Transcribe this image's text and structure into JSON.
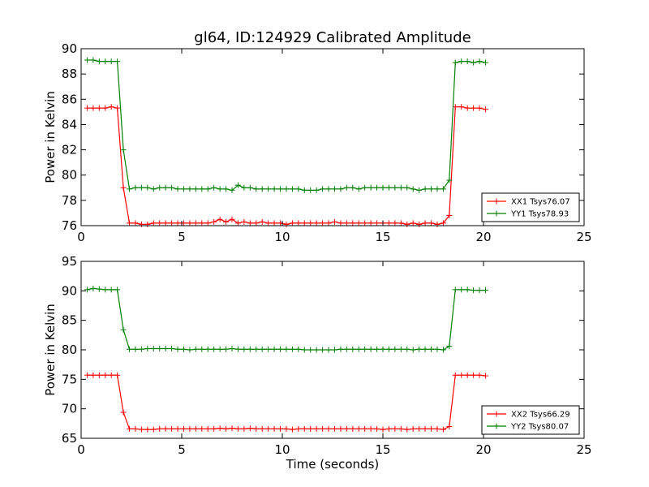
{
  "colors": {
    "xx": "#ff0000",
    "yy": "#008000",
    "axis": "#000000"
  },
  "chart_data": [
    {
      "type": "line",
      "title": "gl64, ID:124929 Calibrated Amplitude",
      "xlabel": "",
      "ylabel": "Power in Kelvin",
      "xlim": [
        0,
        25
      ],
      "ylim": [
        76,
        90
      ],
      "xticks": [
        0,
        5,
        10,
        15,
        20,
        25
      ],
      "yticks": [
        76,
        78,
        80,
        82,
        84,
        86,
        88,
        90
      ],
      "legend_position": "lower-right",
      "x": [
        0.3,
        0.6,
        0.9,
        1.2,
        1.5,
        1.8,
        2.1,
        2.4,
        2.7,
        3.0,
        3.3,
        3.6,
        3.9,
        4.2,
        4.5,
        4.8,
        5.1,
        5.4,
        5.7,
        6.0,
        6.3,
        6.6,
        6.9,
        7.2,
        7.5,
        7.8,
        8.1,
        8.4,
        8.7,
        9.0,
        9.3,
        9.6,
        9.9,
        10.2,
        10.5,
        10.8,
        11.1,
        11.4,
        11.7,
        12.0,
        12.3,
        12.6,
        12.9,
        13.2,
        13.5,
        13.8,
        14.1,
        14.4,
        14.7,
        15.0,
        15.3,
        15.6,
        15.9,
        16.2,
        16.5,
        16.8,
        17.1,
        17.4,
        17.7,
        18.0,
        18.3,
        18.6,
        18.9,
        19.2,
        19.5,
        19.8,
        20.1
      ],
      "series": [
        {
          "name": "XX1 Tsys76.07",
          "color": "#ff0000",
          "values": [
            85.3,
            85.3,
            85.3,
            85.3,
            85.4,
            85.3,
            79.0,
            76.2,
            76.2,
            76.1,
            76.1,
            76.2,
            76.2,
            76.2,
            76.2,
            76.2,
            76.2,
            76.2,
            76.2,
            76.2,
            76.2,
            76.3,
            76.5,
            76.3,
            76.5,
            76.2,
            76.3,
            76.2,
            76.2,
            76.3,
            76.2,
            76.2,
            76.2,
            76.1,
            76.2,
            76.2,
            76.2,
            76.2,
            76.2,
            76.2,
            76.2,
            76.3,
            76.2,
            76.2,
            76.2,
            76.2,
            76.2,
            76.2,
            76.2,
            76.2,
            76.2,
            76.2,
            76.2,
            76.1,
            76.2,
            76.1,
            76.2,
            76.2,
            76.1,
            76.2,
            76.8,
            85.4,
            85.4,
            85.3,
            85.3,
            85.3,
            85.2
          ]
        },
        {
          "name": "YY1 Tsys78.93",
          "color": "#008000",
          "values": [
            89.1,
            89.1,
            89.0,
            89.0,
            89.0,
            89.0,
            82.0,
            78.9,
            79.0,
            79.0,
            79.0,
            78.9,
            79.0,
            79.0,
            79.0,
            78.9,
            78.9,
            78.9,
            78.9,
            78.9,
            78.9,
            79.0,
            78.9,
            78.9,
            78.8,
            79.2,
            79.0,
            79.0,
            78.9,
            78.9,
            78.9,
            78.9,
            78.9,
            78.9,
            78.9,
            78.9,
            78.8,
            78.8,
            78.8,
            78.9,
            78.9,
            78.9,
            78.9,
            79.0,
            79.0,
            78.9,
            79.0,
            79.0,
            79.0,
            79.0,
            79.0,
            79.0,
            79.0,
            79.0,
            78.9,
            78.8,
            78.9,
            78.9,
            78.9,
            78.9,
            79.6,
            88.9,
            89.0,
            89.0,
            88.9,
            89.0,
            88.9
          ]
        }
      ]
    },
    {
      "type": "line",
      "title": "",
      "xlabel": "Time (seconds)",
      "ylabel": "Power in Kelvin",
      "xlim": [
        0,
        25
      ],
      "ylim": [
        65,
        95
      ],
      "xticks": [
        0,
        5,
        10,
        15,
        20,
        25
      ],
      "yticks": [
        65,
        70,
        75,
        80,
        85,
        90,
        95
      ],
      "legend_position": "lower-right",
      "x": [
        0.3,
        0.6,
        0.9,
        1.2,
        1.5,
        1.8,
        2.1,
        2.4,
        2.7,
        3.0,
        3.3,
        3.6,
        3.9,
        4.2,
        4.5,
        4.8,
        5.1,
        5.4,
        5.7,
        6.0,
        6.3,
        6.6,
        6.9,
        7.2,
        7.5,
        7.8,
        8.1,
        8.4,
        8.7,
        9.0,
        9.3,
        9.6,
        9.9,
        10.2,
        10.5,
        10.8,
        11.1,
        11.4,
        11.7,
        12.0,
        12.3,
        12.6,
        12.9,
        13.2,
        13.5,
        13.8,
        14.1,
        14.4,
        14.7,
        15.0,
        15.3,
        15.6,
        15.9,
        16.2,
        16.5,
        16.8,
        17.1,
        17.4,
        17.7,
        18.0,
        18.3,
        18.6,
        18.9,
        19.2,
        19.5,
        19.8,
        20.1
      ],
      "series": [
        {
          "name": "XX2 Tsys66.29",
          "color": "#ff0000",
          "values": [
            75.7,
            75.7,
            75.7,
            75.7,
            75.7,
            75.7,
            69.4,
            66.6,
            66.6,
            66.5,
            66.5,
            66.5,
            66.6,
            66.6,
            66.6,
            66.6,
            66.6,
            66.6,
            66.6,
            66.6,
            66.6,
            66.6,
            66.7,
            66.6,
            66.7,
            66.6,
            66.6,
            66.7,
            66.6,
            66.6,
            66.6,
            66.6,
            66.6,
            66.6,
            66.5,
            66.6,
            66.6,
            66.6,
            66.6,
            66.6,
            66.6,
            66.6,
            66.6,
            66.6,
            66.6,
            66.6,
            66.6,
            66.6,
            66.6,
            66.5,
            66.6,
            66.6,
            66.6,
            66.5,
            66.6,
            66.6,
            66.6,
            66.6,
            66.6,
            66.5,
            67.0,
            75.7,
            75.7,
            75.7,
            75.7,
            75.7,
            75.6
          ]
        },
        {
          "name": "YY2 Tsys80.07",
          "color": "#008000",
          "values": [
            90.2,
            90.4,
            90.3,
            90.2,
            90.2,
            90.2,
            83.4,
            80.1,
            80.1,
            80.1,
            80.2,
            80.2,
            80.2,
            80.2,
            80.2,
            80.1,
            80.1,
            80.0,
            80.1,
            80.1,
            80.1,
            80.1,
            80.1,
            80.1,
            80.2,
            80.1,
            80.1,
            80.1,
            80.1,
            80.1,
            80.1,
            80.1,
            80.1,
            80.1,
            80.1,
            80.1,
            80.0,
            80.0,
            80.0,
            80.0,
            80.0,
            80.0,
            80.1,
            80.1,
            80.1,
            80.1,
            80.1,
            80.1,
            80.1,
            80.1,
            80.1,
            80.1,
            80.1,
            80.1,
            80.0,
            80.1,
            80.1,
            80.1,
            80.1,
            80.0,
            80.6,
            90.2,
            90.2,
            90.2,
            90.1,
            90.1,
            90.1
          ]
        }
      ]
    }
  ]
}
